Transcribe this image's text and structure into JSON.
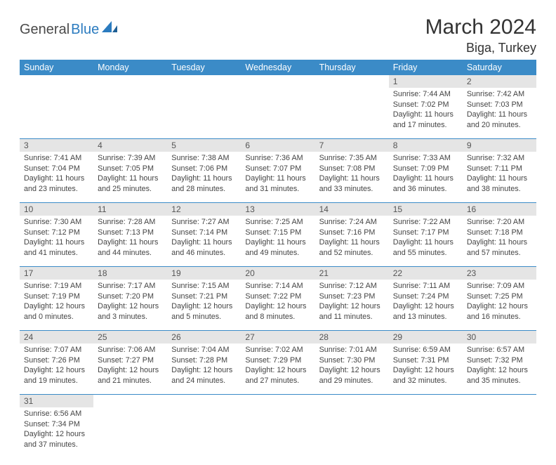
{
  "logo": {
    "word1": "General",
    "word2": "Blue",
    "mark_color": "#2b7bbf",
    "text1_color": "#4a4a4a"
  },
  "title": "March 2024",
  "location": "Biga, Turkey",
  "header_bg": "#3b8bc7",
  "header_fg": "#ffffff",
  "daynum_bg": "#e5e5e5",
  "rule_color": "#3b8bc7",
  "weekdays": [
    "Sunday",
    "Monday",
    "Tuesday",
    "Wednesday",
    "Thursday",
    "Friday",
    "Saturday"
  ],
  "weeks": [
    [
      null,
      null,
      null,
      null,
      null,
      {
        "n": "1",
        "sunrise": "Sunrise: 7:44 AM",
        "sunset": "Sunset: 7:02 PM",
        "day": "Daylight: 11 hours and 17 minutes."
      },
      {
        "n": "2",
        "sunrise": "Sunrise: 7:42 AM",
        "sunset": "Sunset: 7:03 PM",
        "day": "Daylight: 11 hours and 20 minutes."
      }
    ],
    [
      {
        "n": "3",
        "sunrise": "Sunrise: 7:41 AM",
        "sunset": "Sunset: 7:04 PM",
        "day": "Daylight: 11 hours and 23 minutes."
      },
      {
        "n": "4",
        "sunrise": "Sunrise: 7:39 AM",
        "sunset": "Sunset: 7:05 PM",
        "day": "Daylight: 11 hours and 25 minutes."
      },
      {
        "n": "5",
        "sunrise": "Sunrise: 7:38 AM",
        "sunset": "Sunset: 7:06 PM",
        "day": "Daylight: 11 hours and 28 minutes."
      },
      {
        "n": "6",
        "sunrise": "Sunrise: 7:36 AM",
        "sunset": "Sunset: 7:07 PM",
        "day": "Daylight: 11 hours and 31 minutes."
      },
      {
        "n": "7",
        "sunrise": "Sunrise: 7:35 AM",
        "sunset": "Sunset: 7:08 PM",
        "day": "Daylight: 11 hours and 33 minutes."
      },
      {
        "n": "8",
        "sunrise": "Sunrise: 7:33 AM",
        "sunset": "Sunset: 7:09 PM",
        "day": "Daylight: 11 hours and 36 minutes."
      },
      {
        "n": "9",
        "sunrise": "Sunrise: 7:32 AM",
        "sunset": "Sunset: 7:11 PM",
        "day": "Daylight: 11 hours and 38 minutes."
      }
    ],
    [
      {
        "n": "10",
        "sunrise": "Sunrise: 7:30 AM",
        "sunset": "Sunset: 7:12 PM",
        "day": "Daylight: 11 hours and 41 minutes."
      },
      {
        "n": "11",
        "sunrise": "Sunrise: 7:28 AM",
        "sunset": "Sunset: 7:13 PM",
        "day": "Daylight: 11 hours and 44 minutes."
      },
      {
        "n": "12",
        "sunrise": "Sunrise: 7:27 AM",
        "sunset": "Sunset: 7:14 PM",
        "day": "Daylight: 11 hours and 46 minutes."
      },
      {
        "n": "13",
        "sunrise": "Sunrise: 7:25 AM",
        "sunset": "Sunset: 7:15 PM",
        "day": "Daylight: 11 hours and 49 minutes."
      },
      {
        "n": "14",
        "sunrise": "Sunrise: 7:24 AM",
        "sunset": "Sunset: 7:16 PM",
        "day": "Daylight: 11 hours and 52 minutes."
      },
      {
        "n": "15",
        "sunrise": "Sunrise: 7:22 AM",
        "sunset": "Sunset: 7:17 PM",
        "day": "Daylight: 11 hours and 55 minutes."
      },
      {
        "n": "16",
        "sunrise": "Sunrise: 7:20 AM",
        "sunset": "Sunset: 7:18 PM",
        "day": "Daylight: 11 hours and 57 minutes."
      }
    ],
    [
      {
        "n": "17",
        "sunrise": "Sunrise: 7:19 AM",
        "sunset": "Sunset: 7:19 PM",
        "day": "Daylight: 12 hours and 0 minutes."
      },
      {
        "n": "18",
        "sunrise": "Sunrise: 7:17 AM",
        "sunset": "Sunset: 7:20 PM",
        "day": "Daylight: 12 hours and 3 minutes."
      },
      {
        "n": "19",
        "sunrise": "Sunrise: 7:15 AM",
        "sunset": "Sunset: 7:21 PM",
        "day": "Daylight: 12 hours and 5 minutes."
      },
      {
        "n": "20",
        "sunrise": "Sunrise: 7:14 AM",
        "sunset": "Sunset: 7:22 PM",
        "day": "Daylight: 12 hours and 8 minutes."
      },
      {
        "n": "21",
        "sunrise": "Sunrise: 7:12 AM",
        "sunset": "Sunset: 7:23 PM",
        "day": "Daylight: 12 hours and 11 minutes."
      },
      {
        "n": "22",
        "sunrise": "Sunrise: 7:11 AM",
        "sunset": "Sunset: 7:24 PM",
        "day": "Daylight: 12 hours and 13 minutes."
      },
      {
        "n": "23",
        "sunrise": "Sunrise: 7:09 AM",
        "sunset": "Sunset: 7:25 PM",
        "day": "Daylight: 12 hours and 16 minutes."
      }
    ],
    [
      {
        "n": "24",
        "sunrise": "Sunrise: 7:07 AM",
        "sunset": "Sunset: 7:26 PM",
        "day": "Daylight: 12 hours and 19 minutes."
      },
      {
        "n": "25",
        "sunrise": "Sunrise: 7:06 AM",
        "sunset": "Sunset: 7:27 PM",
        "day": "Daylight: 12 hours and 21 minutes."
      },
      {
        "n": "26",
        "sunrise": "Sunrise: 7:04 AM",
        "sunset": "Sunset: 7:28 PM",
        "day": "Daylight: 12 hours and 24 minutes."
      },
      {
        "n": "27",
        "sunrise": "Sunrise: 7:02 AM",
        "sunset": "Sunset: 7:29 PM",
        "day": "Daylight: 12 hours and 27 minutes."
      },
      {
        "n": "28",
        "sunrise": "Sunrise: 7:01 AM",
        "sunset": "Sunset: 7:30 PM",
        "day": "Daylight: 12 hours and 29 minutes."
      },
      {
        "n": "29",
        "sunrise": "Sunrise: 6:59 AM",
        "sunset": "Sunset: 7:31 PM",
        "day": "Daylight: 12 hours and 32 minutes."
      },
      {
        "n": "30",
        "sunrise": "Sunrise: 6:57 AM",
        "sunset": "Sunset: 7:32 PM",
        "day": "Daylight: 12 hours and 35 minutes."
      }
    ],
    [
      {
        "n": "31",
        "sunrise": "Sunrise: 6:56 AM",
        "sunset": "Sunset: 7:34 PM",
        "day": "Daylight: 12 hours and 37 minutes."
      },
      null,
      null,
      null,
      null,
      null,
      null
    ]
  ]
}
